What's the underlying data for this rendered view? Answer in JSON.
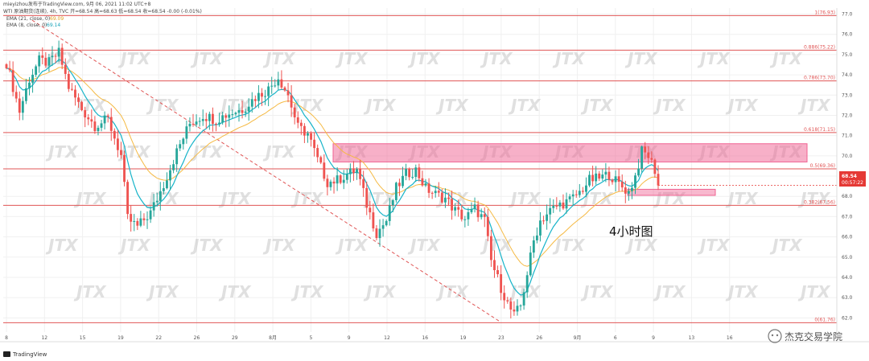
{
  "header": {
    "author_line": "mieyizhou发布于TradingView.com, 9月 06, 2021 11:02 UTC+8",
    "symbol_line": "WTI 原油期货(连续), 4h, TVC  开=68.54  高=68.63  低=68.54  收=68.54  -0.00 (-0.01%)",
    "ema21_label": "EMA (21, close, 0)",
    "ema21_value": "69.09",
    "ema8_label": "EMA (8, close, 0)",
    "ema8_value": "69.14"
  },
  "footer": {
    "brand": "TradingView",
    "credit": "杰克交易学院",
    "credit_icon": "wechat-icon"
  },
  "annotation": "4小时图",
  "price_tag": {
    "value": "68.54",
    "countdown": "00:57:22",
    "color": "#e53935"
  },
  "watermark": "JTX",
  "colors": {
    "up": "#26a69a",
    "down": "#ef5350",
    "fib": "#e05555",
    "zone": "#f06292",
    "ema8": "#17b4c9",
    "ema21": "#f5b942"
  },
  "chart_data": {
    "type": "candlestick",
    "title": "",
    "ylim": [
      61.3,
      77.3
    ],
    "yticks": [
      "62.0",
      "63.0",
      "64.0",
      "65.0",
      "66.0",
      "67.0",
      "68.0",
      "69.0",
      "70.0",
      "71.0",
      "72.0",
      "73.0",
      "74.0",
      "75.0",
      "76.0",
      "77.0"
    ],
    "xticks": [
      "8",
      "12",
      "15",
      "19",
      "22",
      "26",
      "29",
      "8月",
      "5",
      "9",
      "12",
      "16",
      "19",
      "23",
      "26",
      "9月",
      "6",
      "9",
      "13",
      "16"
    ],
    "fib_levels": [
      {
        "ratio": "1",
        "price": 76.93,
        "label": "1(76.93)"
      },
      {
        "ratio": "0.886",
        "price": 75.22,
        "label": "0.886(75.22)"
      },
      {
        "ratio": "0.786",
        "price": 73.7,
        "label": "0.786(73.70)"
      },
      {
        "ratio": "0.618",
        "price": 71.15,
        "label": "0.618(71.15)"
      },
      {
        "ratio": "0.5",
        "price": 69.36,
        "label": "0.5(69.36)"
      },
      {
        "ratio": "0.382",
        "price": 67.56,
        "label": "0.382(67.56)"
      },
      {
        "ratio": "0",
        "price": 61.76,
        "label": "0(61.76)"
      }
    ],
    "zones": [
      {
        "name": "resistance-zone",
        "x0": 0.0,
        "x1": 1.0,
        "y_low": 69.7,
        "y_high": 70.6
      },
      {
        "name": "support-zone",
        "x0": 0.0,
        "x1": 1.0,
        "y_low": 68.05,
        "y_high": 68.35
      }
    ],
    "trendline": {
      "from": [
        0,
        76.7
      ],
      "to": [
        1,
        61.8
      ]
    },
    "candles": {
      "note_keys": [
        "open",
        "high",
        "low",
        "close"
      ],
      "anchors": [
        [
          0,
          74.6
        ],
        [
          4,
          72.2
        ],
        [
          7,
          73.8
        ],
        [
          10,
          74.7
        ],
        [
          13,
          74.6
        ],
        [
          16,
          75.1
        ],
        [
          19,
          73.4
        ],
        [
          23,
          72.3
        ],
        [
          27,
          71.5
        ],
        [
          31,
          71.8
        ],
        [
          35,
          70.0
        ],
        [
          37,
          66.9
        ],
        [
          40,
          66.5
        ],
        [
          44,
          67.2
        ],
        [
          48,
          68.6
        ],
        [
          52,
          70.2
        ],
        [
          56,
          71.6
        ],
        [
          60,
          72.0
        ],
        [
          64,
          71.8
        ],
        [
          68,
          72.1
        ],
        [
          72,
          72.3
        ],
        [
          76,
          72.9
        ],
        [
          80,
          73.3
        ],
        [
          83,
          73.9
        ],
        [
          86,
          73.0
        ],
        [
          89,
          71.4
        ],
        [
          92,
          71.1
        ],
        [
          95,
          69.8
        ],
        [
          98,
          68.7
        ],
        [
          101,
          68.8
        ],
        [
          104,
          69.1
        ],
        [
          107,
          69.3
        ],
        [
          110,
          67.6
        ],
        [
          113,
          66.2
        ],
        [
          116,
          66.8
        ],
        [
          119,
          68.4
        ],
        [
          122,
          69.1
        ],
        [
          125,
          69.3
        ],
        [
          128,
          68.4
        ],
        [
          131,
          68.1
        ],
        [
          134,
          67.9
        ],
        [
          137,
          67.3
        ],
        [
          140,
          66.9
        ],
        [
          143,
          67.4
        ],
        [
          146,
          66.8
        ],
        [
          148,
          64.8
        ],
        [
          151,
          63.5
        ],
        [
          153,
          62.7
        ],
        [
          155,
          62.1
        ],
        [
          157,
          62.6
        ],
        [
          159,
          64.2
        ],
        [
          161,
          65.8
        ],
        [
          163,
          66.8
        ],
        [
          166,
          67.3
        ],
        [
          169,
          67.6
        ],
        [
          172,
          67.8
        ],
        [
          175,
          68.2
        ],
        [
          178,
          68.8
        ],
        [
          181,
          68.9
        ],
        [
          184,
          69.1
        ],
        [
          187,
          68.6
        ],
        [
          190,
          68.2
        ],
        [
          192,
          69.0
        ],
        [
          194,
          70.2
        ],
        [
          196,
          70.0
        ],
        [
          198,
          69.3
        ],
        [
          199,
          68.54
        ]
      ]
    },
    "ema8_anchor_note": "fast EMA follows price closely",
    "ema21_anchor_note": "slow EMA lags price"
  }
}
